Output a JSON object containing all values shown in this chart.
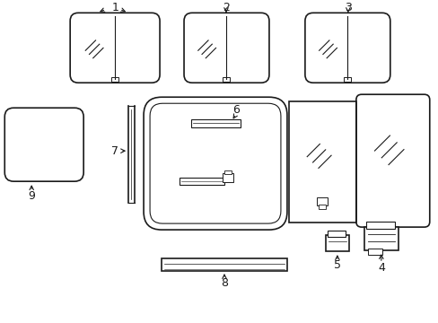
{
  "background_color": "#ffffff",
  "line_color": "#1a1a1a",
  "parts": [
    "1",
    "2",
    "3",
    "4",
    "5",
    "6",
    "7",
    "8",
    "9"
  ],
  "fig_w": 4.89,
  "fig_h": 3.6,
  "dpi": 100
}
